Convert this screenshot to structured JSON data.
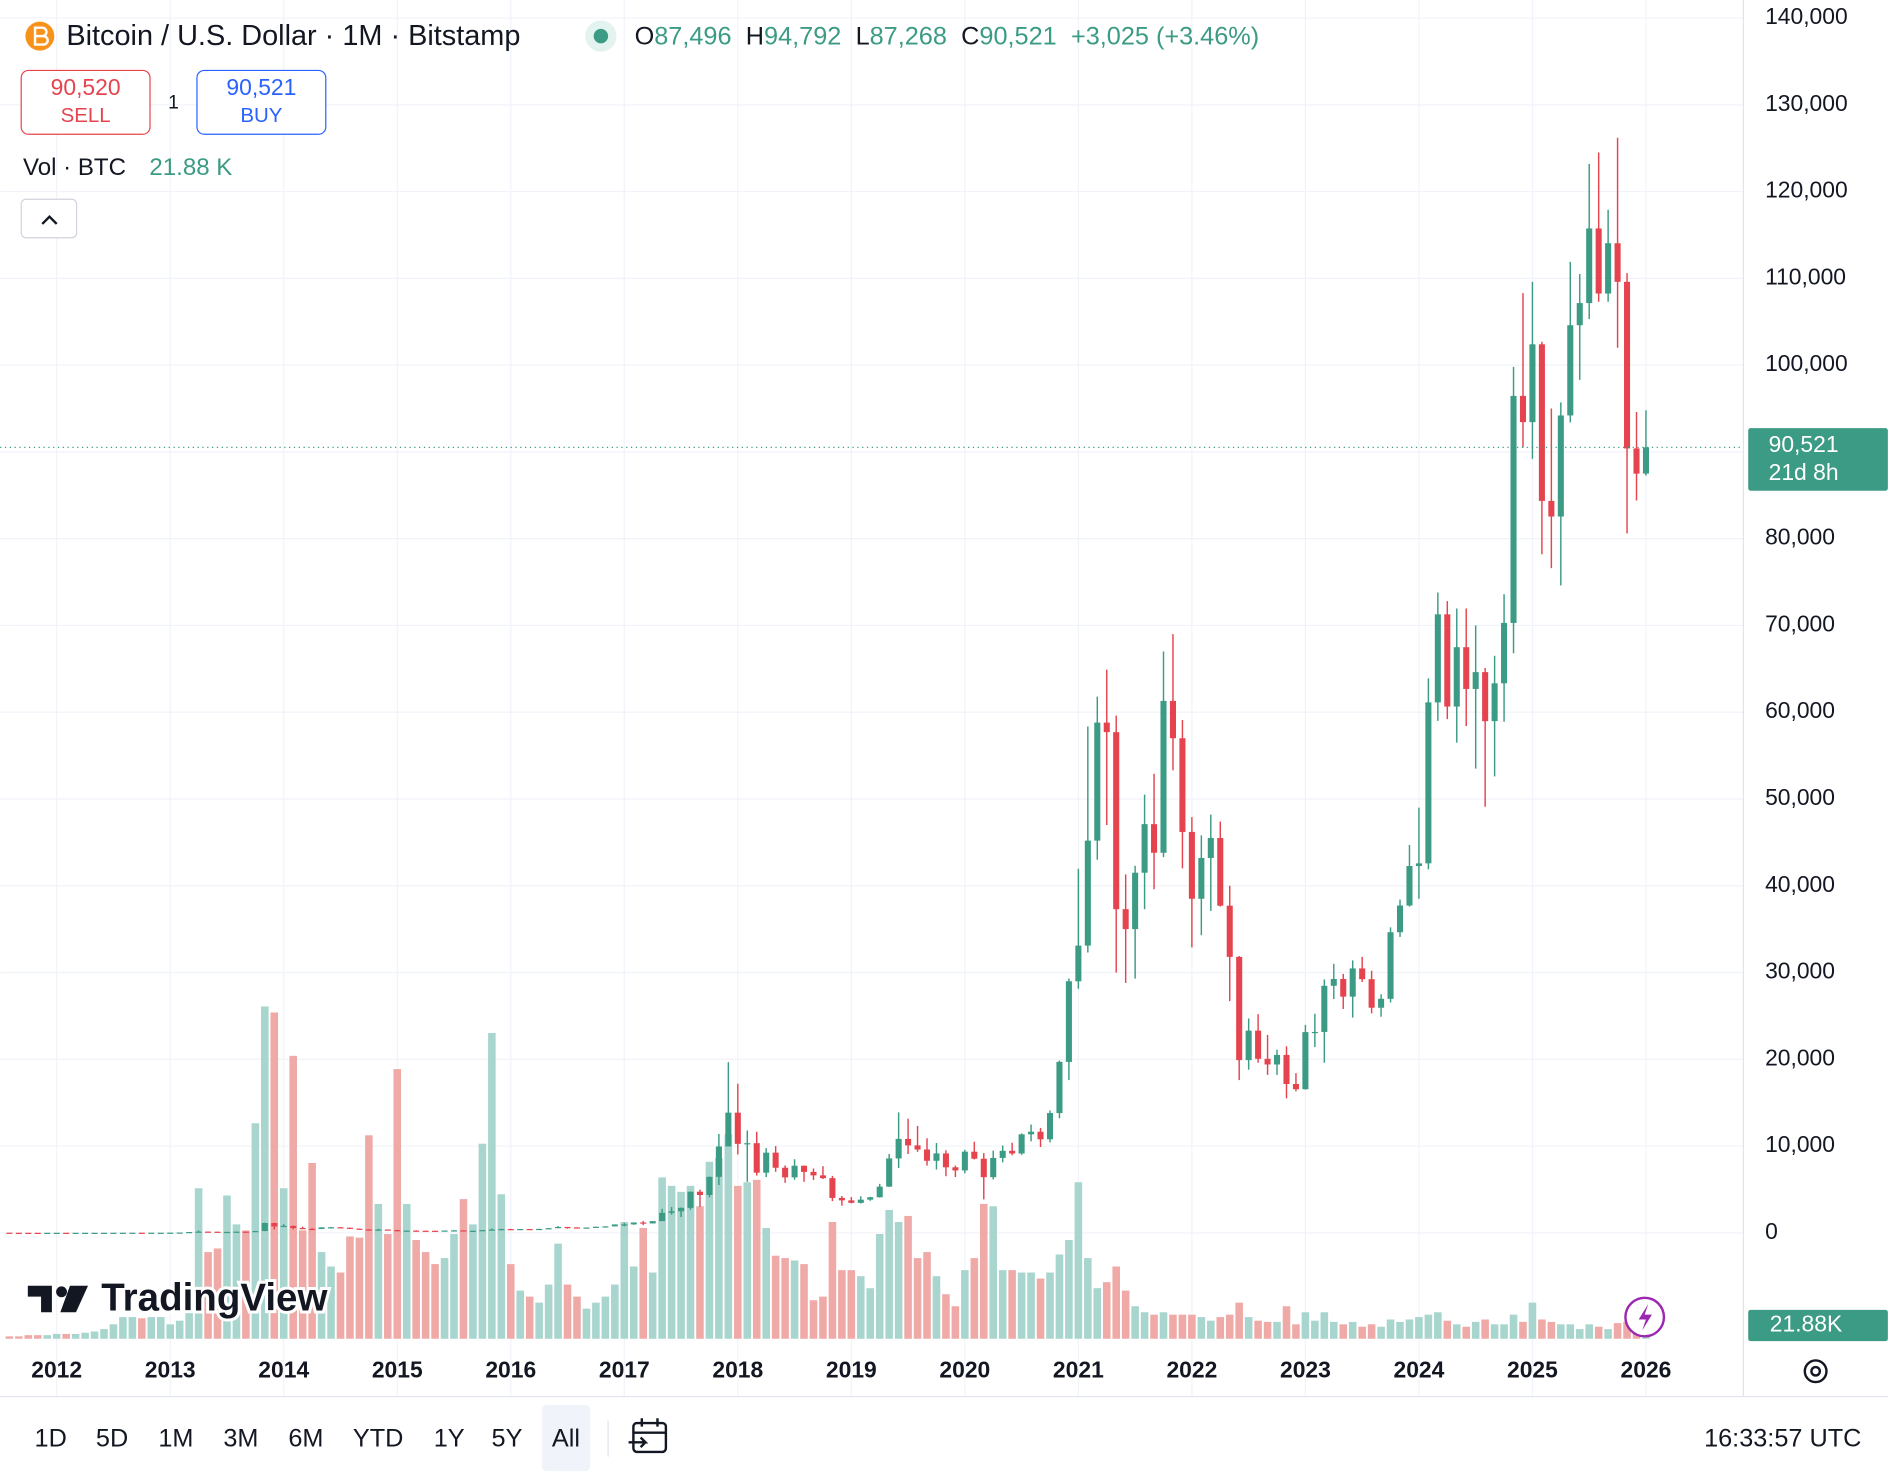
{
  "header": {
    "symbol": "Bitcoin / U.S. Dollar · 1M · Bitstamp",
    "ohlc": [
      {
        "label": "O",
        "value": "87,496"
      },
      {
        "label": "H",
        "value": "94,792"
      },
      {
        "label": "L",
        "value": "87,268"
      },
      {
        "label": "C",
        "value": "90,521"
      }
    ],
    "change": "+3,025 (+3.46%)"
  },
  "trade": {
    "sell_price": "90,520",
    "sell": "SELL",
    "quantity": "1",
    "buy_price": "90,521",
    "buy": "BUY"
  },
  "volume_legend": {
    "label": "Vol · BTC",
    "value": "21.88 K"
  },
  "logo": "TradingView",
  "ranges": [
    "1D",
    "5D",
    "1M",
    "3M",
    "6M",
    "YTD",
    "1Y",
    "5Y",
    "All"
  ],
  "clock": "16:33:57 UTC",
  "chart_data": {
    "type": "candlestick",
    "up_color": "#3b9b84",
    "down_color": "#e5444f",
    "volume_up_color": "#a8d5cd",
    "volume_down_color": "#efaaa7",
    "grid": true,
    "ylim": [
      -12210,
      142080
    ],
    "yticks": [
      0,
      {
        "value": 10000,
        "label": "10,000"
      },
      {
        "value": 20000,
        "label": "20,000"
      },
      {
        "value": 30000,
        "label": "30,000"
      },
      {
        "value": 40000,
        "label": "40,000"
      },
      {
        "value": 50000,
        "label": "50,000"
      },
      {
        "value": 60000,
        "label": "60,000"
      },
      {
        "value": 70000,
        "label": "70,000"
      },
      {
        "value": 80000,
        "label": "80,000"
      },
      {
        "value": 90000,
        "label": "90,000"
      },
      {
        "value": 100000,
        "label": "100,000"
      },
      {
        "value": 110000,
        "label": "110,000"
      },
      {
        "value": 120000,
        "label": "120,000"
      },
      {
        "value": 130000,
        "label": "130,000"
      },
      {
        "value": 140000,
        "label": "140,000"
      }
    ],
    "xlim": [
      -0.98,
      183.3
    ],
    "xticks": [
      {
        "value": 5,
        "label": "2012"
      },
      {
        "value": 17,
        "label": "2013"
      },
      {
        "value": 29,
        "label": "2014"
      },
      {
        "value": 41,
        "label": "2015"
      },
      {
        "value": 53,
        "label": "2016"
      },
      {
        "value": 65,
        "label": "2017"
      },
      {
        "value": 77,
        "label": "2018"
      },
      {
        "value": 89,
        "label": "2019"
      },
      {
        "value": 101,
        "label": "2020"
      },
      {
        "value": 113,
        "label": "2021"
      },
      {
        "value": 125,
        "label": "2022"
      },
      {
        "value": 137,
        "label": "2023"
      },
      {
        "value": 149,
        "label": "2024"
      },
      {
        "value": 161,
        "label": "2025"
      },
      {
        "value": 173,
        "label": "2026"
      }
    ],
    "last_price_label": "90,521",
    "countdown": "21d 8h",
    "volume_label": "21.88K",
    "candles": [
      [
        13.5,
        13.9,
        7.5,
        8.2
      ],
      [
        8.2,
        8.4,
        4.8,
        5.1
      ],
      [
        5.1,
        5.2,
        2.3,
        3.2
      ],
      [
        3.2,
        3.5,
        2.0,
        3.0
      ],
      [
        3.0,
        4.8,
        2.8,
        4.7
      ],
      [
        4.7,
        7.2,
        4.6,
        5.5
      ],
      [
        5.5,
        6.3,
        4.3,
        4.9
      ],
      [
        4.9,
        5.4,
        4.7,
        4.9
      ],
      [
        4.9,
        5.3,
        4.8,
        5.0
      ],
      [
        5.0,
        5.2,
        4.9,
        5.2
      ],
      [
        5.2,
        6.8,
        5.2,
        6.7
      ],
      [
        6.7,
        9.5,
        6.5,
        9.4
      ],
      [
        9.4,
        15.4,
        7.1,
        10.2
      ],
      [
        10.2,
        12.9,
        10.0,
        12.4
      ],
      [
        12.4,
        12.9,
        10.2,
        11.2
      ],
      [
        11.2,
        12.7,
        10.4,
        12.6
      ],
      [
        12.6,
        14.0,
        12.6,
        13.5
      ],
      [
        13.5,
        20.6,
        13.5,
        20.4
      ],
      [
        20.4,
        33.8,
        19.2,
        33.4
      ],
      [
        33.4,
        95.7,
        33.2,
        93
      ],
      [
        93,
        266,
        50,
        139
      ],
      [
        139,
        140,
        80,
        129
      ],
      [
        129,
        129,
        91,
        97
      ],
      [
        97,
        111,
        66,
        106
      ],
      [
        106,
        137,
        101,
        135
      ],
      [
        135,
        145,
        110,
        133
      ],
      [
        133,
        215,
        104,
        204
      ],
      [
        204,
        1165,
        198,
        1130
      ],
      [
        1130,
        1163,
        400,
        732
      ],
      [
        732,
        1000,
        720,
        800
      ],
      [
        800,
        830,
        400,
        550
      ],
      [
        550,
        710,
        440,
        450
      ],
      [
        450,
        540,
        340,
        445
      ],
      [
        445,
        630,
        420,
        630
      ],
      [
        630,
        680,
        560,
        640
      ],
      [
        640,
        655,
        570,
        585
      ],
      [
        585,
        600,
        440,
        480
      ],
      [
        480,
        500,
        360,
        387
      ],
      [
        387,
        420,
        275,
        338
      ],
      [
        338,
        455,
        325,
        378
      ],
      [
        378,
        380,
        310,
        320
      ],
      [
        320,
        320,
        152,
        217
      ],
      [
        217,
        270,
        212,
        254
      ],
      [
        254,
        300,
        240,
        244
      ],
      [
        244,
        262,
        215,
        236
      ],
      [
        236,
        247,
        225,
        230
      ],
      [
        230,
        268,
        220,
        263
      ],
      [
        263,
        315,
        252,
        284
      ],
      [
        284,
        285,
        162,
        230
      ],
      [
        230,
        245,
        225,
        236
      ],
      [
        236,
        328,
        235,
        314
      ],
      [
        314,
        502,
        308,
        377
      ],
      [
        377,
        468,
        352,
        430
      ],
      [
        430,
        462,
        350,
        368
      ],
      [
        368,
        448,
        365,
        437
      ],
      [
        437,
        440,
        394,
        416
      ],
      [
        416,
        468,
        412,
        448
      ],
      [
        448,
        550,
        435,
        531
      ],
      [
        531,
        780,
        530,
        673
      ],
      [
        673,
        680,
        475,
        624
      ],
      [
        624,
        630,
        530,
        575
      ],
      [
        575,
        612,
        570,
        609
      ],
      [
        609,
        715,
        605,
        700
      ],
      [
        700,
        755,
        680,
        742
      ],
      [
        742,
        975,
        740,
        963
      ],
      [
        963,
        1150,
        750,
        970
      ],
      [
        970,
        1200,
        920,
        1190
      ],
      [
        1190,
        1350,
        890,
        1080
      ],
      [
        1080,
        1350,
        1075,
        1348
      ],
      [
        1348,
        2760,
        1345,
        2300
      ],
      [
        2300,
        2980,
        2100,
        2480
      ],
      [
        2480,
        2920,
        1830,
        2875
      ],
      [
        2875,
        4760,
        2670,
        4735
      ],
      [
        4735,
        4980,
        2970,
        4360
      ],
      [
        4360,
        6470,
        4100,
        6450
      ],
      [
        6450,
        11400,
        5500,
        9950
      ],
      [
        9950,
        19666,
        9950,
        13850
      ],
      [
        13850,
        17180,
        9035,
        10250
      ],
      [
        10250,
        11790,
        5870,
        10330
      ],
      [
        10330,
        11650,
        6600,
        6930
      ],
      [
        6930,
        9760,
        6430,
        9240
      ],
      [
        9240,
        9990,
        7030,
        7500
      ],
      [
        7500,
        7760,
        5760,
        6390
      ],
      [
        6390,
        8480,
        6110,
        7730
      ],
      [
        7730,
        7750,
        5880,
        7020
      ],
      [
        7020,
        7410,
        6100,
        6620
      ],
      [
        6620,
        7680,
        6200,
        6300
      ],
      [
        6300,
        6560,
        3650,
        4020
      ],
      [
        4020,
        4240,
        3120,
        3740
      ],
      [
        3740,
        4120,
        3400,
        3450
      ],
      [
        3450,
        4210,
        3380,
        3820
      ],
      [
        3820,
        4140,
        3690,
        4100
      ],
      [
        4100,
        5640,
        4060,
        5320
      ],
      [
        5320,
        9090,
        5300,
        8570
      ],
      [
        8570,
        13880,
        7460,
        10820
      ],
      [
        10820,
        13150,
        9080,
        10080
      ],
      [
        10080,
        12320,
        9330,
        9600
      ],
      [
        9600,
        10900,
        7750,
        8300
      ],
      [
        8300,
        10350,
        7300,
        9150
      ],
      [
        9150,
        9510,
        6520,
        7550
      ],
      [
        7550,
        7750,
        6430,
        7190
      ],
      [
        7190,
        9570,
        6860,
        9350
      ],
      [
        9350,
        10500,
        8460,
        8540
      ],
      [
        8540,
        9190,
        3850,
        6410
      ],
      [
        6410,
        9470,
        6150,
        8630
      ],
      [
        8630,
        10070,
        8110,
        9450
      ],
      [
        9450,
        10380,
        8940,
        9140
      ],
      [
        9140,
        11450,
        8990,
        11350
      ],
      [
        11350,
        12480,
        10540,
        11650
      ],
      [
        11650,
        12090,
        9890,
        10780
      ],
      [
        10780,
        14100,
        10410,
        13800
      ],
      [
        13800,
        19850,
        13200,
        19700
      ],
      [
        19700,
        29300,
        17600,
        28990
      ],
      [
        28990,
        41950,
        28130,
        33100
      ],
      [
        33100,
        58350,
        32300,
        45200
      ],
      [
        45200,
        61800,
        43000,
        58800
      ],
      [
        58800,
        64900,
        47000,
        57700
      ],
      [
        57700,
        59600,
        30000,
        37300
      ],
      [
        37300,
        41300,
        28800,
        35000
      ],
      [
        35000,
        42300,
        29300,
        41500
      ],
      [
        41500,
        50500,
        37300,
        47100
      ],
      [
        47100,
        52900,
        39600,
        43800
      ],
      [
        43800,
        67000,
        43300,
        61300
      ],
      [
        61300,
        69000,
        53300,
        57000
      ],
      [
        57000,
        59100,
        42000,
        46200
      ],
      [
        46200,
        47900,
        32900,
        38500
      ],
      [
        38500,
        45800,
        34300,
        43200
      ],
      [
        43200,
        48200,
        37100,
        45500
      ],
      [
        45500,
        47400,
        37600,
        37700
      ],
      [
        37700,
        40000,
        26700,
        31800
      ],
      [
        31800,
        31900,
        17600,
        19900
      ],
      [
        19900,
        24700,
        18800,
        23300
      ],
      [
        23300,
        25200,
        19600,
        20050
      ],
      [
        20050,
        22800,
        18200,
        19400
      ],
      [
        19400,
        21100,
        18200,
        20500
      ],
      [
        20500,
        21500,
        15500,
        17150
      ],
      [
        17150,
        18400,
        16300,
        16550
      ],
      [
        16550,
        23960,
        16500,
        23130
      ],
      [
        23130,
        25250,
        21400,
        23150
      ],
      [
        23150,
        29200,
        19600,
        28470
      ],
      [
        28470,
        31000,
        26940,
        29250
      ],
      [
        29250,
        29840,
        25800,
        27220
      ],
      [
        27220,
        31400,
        24800,
        30470
      ],
      [
        30470,
        31800,
        28900,
        29230
      ],
      [
        29230,
        30200,
        25300,
        25940
      ],
      [
        25940,
        27500,
        24900,
        26970
      ],
      [
        26970,
        35200,
        26540,
        34640
      ],
      [
        34640,
        38400,
        34100,
        37720
      ],
      [
        37720,
        44700,
        37600,
        42270
      ],
      [
        42270,
        49000,
        38500,
        42580
      ],
      [
        42580,
        63900,
        41900,
        61130
      ],
      [
        61130,
        73800,
        59000,
        71280
      ],
      [
        71280,
        72800,
        59200,
        60650
      ],
      [
        60650,
        71950,
        56500,
        67490
      ],
      [
        67490,
        71950,
        58400,
        62680
      ],
      [
        62680,
        70000,
        53500,
        64620
      ],
      [
        64620,
        65100,
        49100,
        58970
      ],
      [
        58970,
        66500,
        52600,
        63330
      ],
      [
        63330,
        73600,
        58900,
        70290
      ],
      [
        70290,
        99800,
        66800,
        96450
      ],
      [
        96450,
        108300,
        90500,
        93430
      ],
      [
        93430,
        109600,
        89200,
        102400
      ],
      [
        102400,
        102700,
        78200,
        84350
      ],
      [
        84350,
        95000,
        76600,
        82550
      ],
      [
        82550,
        95700,
        74600,
        94200
      ],
      [
        94200,
        111900,
        93400,
        104600
      ],
      [
        104600,
        110500,
        98300,
        107150
      ],
      [
        107150,
        123200,
        105300,
        115750
      ],
      [
        115750,
        124500,
        107300,
        108250
      ],
      [
        108250,
        117900,
        107300,
        114050
      ],
      [
        114050,
        126200,
        102000,
        109600
      ],
      [
        109600,
        110600,
        80600,
        90400
      ],
      [
        90400,
        94600,
        84400,
        87496
      ],
      [
        87496,
        94792,
        87268,
        90521
      ]
    ],
    "volume": [
      3400,
      3400,
      5100,
      5100,
      5100,
      6800,
      6800,
      6800,
      8500,
      10200,
      13600,
      20400,
      30600,
      30600,
      28900,
      30600,
      30600,
      20400,
      25500,
      68000,
      212500,
      122400,
      127500,
      202300,
      161500,
      153000,
      304300,
      469200,
      460700,
      212500,
      399500,
      153000,
      248200,
      122400,
      102000,
      93500,
      144500,
      142800,
      287300,
      190400,
      147900,
      380800,
      190400,
      139400,
      122400,
      105400,
      113900,
      147900,
      197200,
      161500,
      275400,
      431800,
      204000,
      105400,
      68000,
      59500,
      51000,
      76500,
      134300,
      76500,
      59500,
      42500,
      51000,
      59500,
      76500,
      164900,
      102000,
      156400,
      93500,
      227800,
      215900,
      207400,
      215900,
      187000,
      249900,
      255000,
      289000,
      215900,
      221000,
      224400,
      156400,
      117300,
      113900,
      110500,
      105400,
      54400,
      59500,
      164900,
      96900,
      96900,
      88400,
      71400,
      147900,
      181900,
      164900,
      173400,
      113900,
      122400,
      88400,
      62900,
      45900,
      96900,
      113900,
      190400,
      187000,
      96900,
      96900,
      93500,
      93500,
      85000,
      93500,
      119000,
      139400,
      221000,
      113900,
      71400,
      79900,
      102000,
      68000,
      45900,
      37400,
      34000,
      37400,
      34000,
      34000,
      34000,
      30600,
      25500,
      30600,
      34000,
      51000,
      30600,
      25500,
      23800,
      23800,
      45900,
      20400,
      37400,
      25500,
      37400,
      23800,
      20400,
      23800,
      17000,
      20400,
      17000,
      27200,
      23800,
      27200,
      30600,
      34000,
      37400,
      25500,
      20400,
      17000,
      23800,
      27200,
      20400,
      20400,
      34000,
      23800,
      51000,
      27200,
      23800,
      20400,
      20400,
      13600,
      20400,
      17000,
      13600,
      22100,
      23800,
      20400,
      21880
    ]
  }
}
